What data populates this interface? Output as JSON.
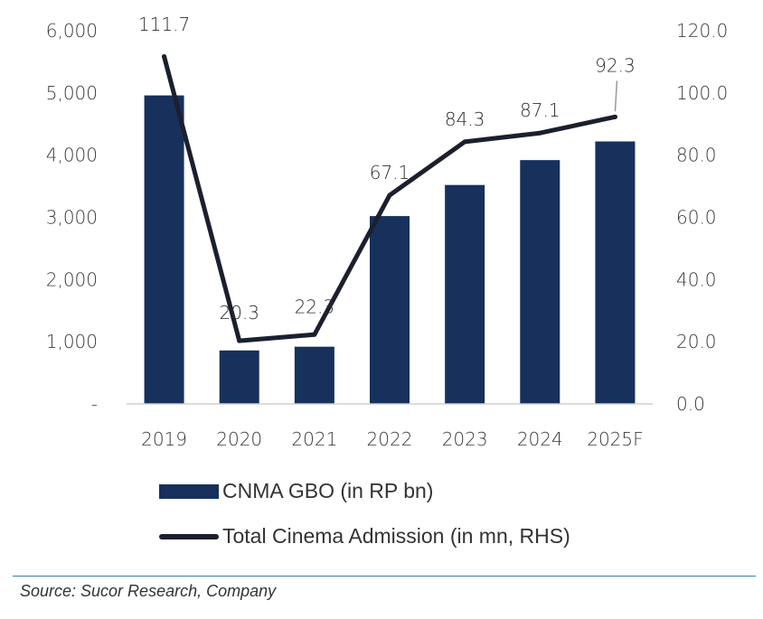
{
  "chart_data": {
    "type": "bar+line",
    "categories": [
      "2019",
      "2020",
      "2021",
      "2022",
      "2023",
      "2024",
      "2025F"
    ],
    "series": [
      {
        "name": "CNMA GBO (in RP bn)",
        "type": "bar",
        "axis": "left",
        "values": [
          4960,
          860,
          920,
          3020,
          3520,
          3920,
          4220
        ],
        "color": "#17305c"
      },
      {
        "name": "Total Cinema Admission (in mn, RHS)",
        "type": "line",
        "axis": "right",
        "values": [
          111.7,
          20.3,
          22.3,
          67.1,
          84.3,
          87.1,
          92.3
        ],
        "color": "#1b1f2e"
      }
    ],
    "data_labels": [
      "111.7",
      "20.3",
      "22.3",
      "67.1",
      "84.3",
      "87.1",
      "92.3"
    ],
    "y_left": {
      "ylim": [
        0,
        6000
      ],
      "ticks": [
        0,
        1000,
        2000,
        3000,
        4000,
        5000,
        6000
      ],
      "tick_labels": [
        "-",
        "1,000",
        "2,000",
        "3,000",
        "4,000",
        "5,000",
        "6,000"
      ]
    },
    "y_right": {
      "ylim": [
        0,
        120
      ],
      "ticks": [
        0,
        20,
        40,
        60,
        80,
        100,
        120
      ],
      "tick_labels": [
        "0.0",
        "20.0",
        "40.0",
        "60.0",
        "80.0",
        "100.0",
        "120.0"
      ]
    },
    "grid": false,
    "legend_position": "bottom"
  },
  "legend": {
    "bar_label": "CNMA GBO (in RP bn)",
    "line_label": "Total Cinema Admission (in mn, RHS)"
  },
  "source": "Source: Sucor Research, Company"
}
